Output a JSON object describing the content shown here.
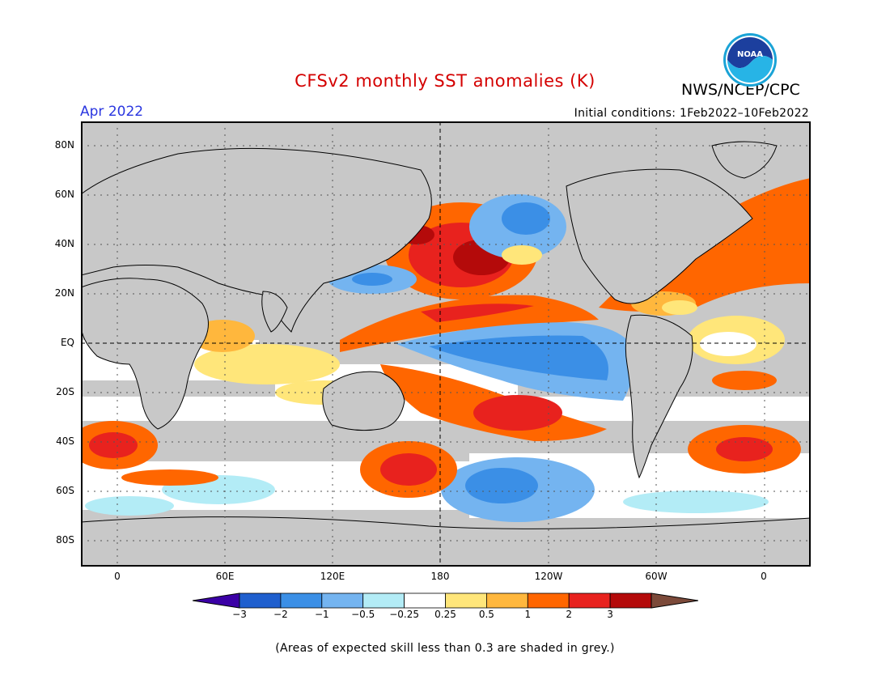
{
  "title": "CFSv2 monthly SST anomalies (K)",
  "agency": "NWS/NCEP/CPC",
  "month": "Apr 2022",
  "initial_conditions": "Initial conditions: 1Feb2022–10Feb2022",
  "logo": {
    "name": "noaa-logo",
    "text": "NOAA"
  },
  "lat_labels": [
    "80N",
    "60N",
    "40N",
    "20N",
    "EQ",
    "20S",
    "40S",
    "60S",
    "80S"
  ],
  "lon_labels": [
    "0",
    "60E",
    "120E",
    "180",
    "120W",
    "60W",
    "0"
  ],
  "colorbar": {
    "colors": [
      "#3b00a6",
      "#1f5fce",
      "#3b8fe6",
      "#74b4f0",
      "#b3ecf6",
      "#ffffff",
      "#ffe67a",
      "#ffb73d",
      "#ff6600",
      "#e8221e",
      "#b40a0a",
      "#7c4a3a"
    ],
    "ticks": [
      "−3",
      "−2",
      "−1",
      "−0.5",
      "−0.25",
      "0.25",
      "0.5",
      "1",
      "2",
      "3"
    ]
  },
  "footnote": "(Areas of expected skill less than 0.3 are shaded in grey.)",
  "colors": {
    "land": "#ffffff",
    "low_skill": "#c8c8c8",
    "title": "#d40000",
    "month": "#2a36e0"
  }
}
